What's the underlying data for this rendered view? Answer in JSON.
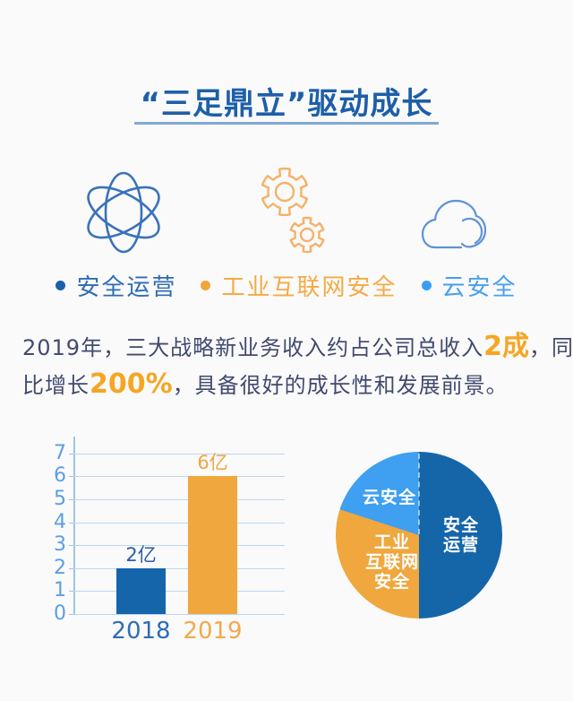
{
  "page": {
    "background": "#fafafa"
  },
  "header": {
    "title": "“三足鼎立”驱动成长",
    "title_color": "#1d5fa8",
    "underline_color": "#7fa9d6"
  },
  "pillars": [
    {
      "icon": "atom-icon",
      "label": "安全运营",
      "text_color": "#2e6cb4",
      "bullet_color": "#1a61a8",
      "icon_color": "#3a72ba"
    },
    {
      "icon": "gears-icon",
      "label": "工业互联网安全",
      "text_color": "#f5aa45",
      "bullet_color": "#f0a63c",
      "icon_color": "#f5b169"
    },
    {
      "icon": "cloud-icon",
      "label": "云安全",
      "text_color": "#47a0ee",
      "bullet_color": "#389ef2",
      "icon_color": "#5e93d4"
    }
  ],
  "paragraph": {
    "text_color": "#414a6e",
    "highlight_color": "#f5a623",
    "full_text": "2019年，三大战略新业务收入约占公司总收入2成，同比增长200%，具备很好的成长性和发展前景。",
    "lines": [
      {
        "seg1": "2019年，三大战略新业务收入约占公司总收入",
        "seg2": "2成",
        "seg3": "，同"
      },
      {
        "seg1": "比增长",
        "seg2": "200%",
        "seg3": "，具备很好的成长性和发展前景。"
      }
    ]
  },
  "chart_data": [
    {
      "type": "bar",
      "title": "",
      "categories": [
        "2018",
        "2019"
      ],
      "values": [
        2,
        6
      ],
      "unit": "亿",
      "value_labels": [
        "2亿",
        "6亿"
      ],
      "bar_colors": [
        "#1565ab",
        "#f0a73e"
      ],
      "category_colors": [
        "#2e6db6",
        "#f2a94c"
      ],
      "value_label_colors": [
        "#2b5d9f",
        "#f0a540"
      ],
      "xlabel": "",
      "ylabel": "",
      "ylim": [
        0,
        7
      ],
      "yticks": [
        0,
        1,
        2,
        3,
        4,
        5,
        6,
        7
      ],
      "grid": true,
      "grid_color": "#bcd7f2",
      "axis_color": "#9dc4ea",
      "tick_color": "#5d9ee2",
      "legend_position": "none"
    },
    {
      "type": "pie",
      "title": "",
      "start_angle_deg": 0,
      "direction": "clockwise",
      "label_color": "#ffffff",
      "segments": [
        {
          "label": "安全运营",
          "label_display": "安全运营",
          "value": 50,
          "color": "#1566a9"
        },
        {
          "label": "工业互联网安全",
          "label_display": "工业\n互联网\n安全",
          "value": 30,
          "color": "#f0a73e"
        },
        {
          "label": "云安全",
          "label_display": "云安全",
          "value": 20,
          "color": "#3f9ff0"
        }
      ]
    }
  ]
}
